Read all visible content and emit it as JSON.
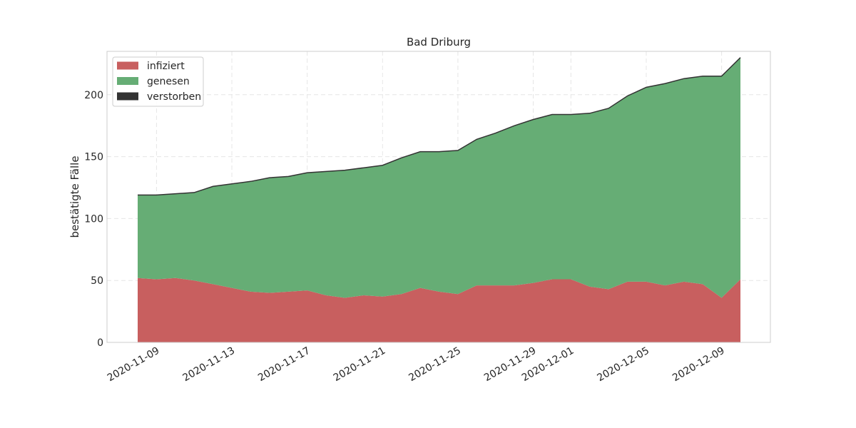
{
  "chart_data": {
    "type": "area",
    "stacked": true,
    "title": "Bad Driburg",
    "xlabel": "",
    "ylabel": "bestätigte Fälle",
    "ylim": [
      0,
      235
    ],
    "yticks": [
      0,
      50,
      100,
      150,
      200
    ],
    "grid": true,
    "legend_position": "top-left",
    "x": [
      "2020-11-08",
      "2020-11-09",
      "2020-11-10",
      "2020-11-11",
      "2020-11-12",
      "2020-11-13",
      "2020-11-14",
      "2020-11-15",
      "2020-11-16",
      "2020-11-17",
      "2020-11-18",
      "2020-11-19",
      "2020-11-20",
      "2020-11-21",
      "2020-11-22",
      "2020-11-23",
      "2020-11-24",
      "2020-11-25",
      "2020-11-26",
      "2020-11-27",
      "2020-11-28",
      "2020-11-29",
      "2020-11-30",
      "2020-12-01",
      "2020-12-02",
      "2020-12-03",
      "2020-12-04",
      "2020-12-05",
      "2020-12-06",
      "2020-12-07",
      "2020-12-08",
      "2020-12-09",
      "2020-12-10"
    ],
    "xticks": [
      "2020-11-09",
      "2020-11-13",
      "2020-11-17",
      "2020-11-21",
      "2020-11-25",
      "2020-11-29",
      "2020-12-01",
      "2020-12-05",
      "2020-12-09"
    ],
    "series": [
      {
        "name": "infiziert",
        "color": "#c85f5f",
        "values": [
          52,
          51,
          52,
          50,
          47,
          44,
          41,
          40,
          41,
          42,
          38,
          36,
          38,
          37,
          39,
          44,
          41,
          39,
          46,
          46,
          46,
          48,
          51,
          51,
          45,
          43,
          49,
          49,
          46,
          49,
          47,
          36,
          51
        ]
      },
      {
        "name": "genesen",
        "color": "#66ad75",
        "values": [
          67,
          68,
          68,
          71,
          79,
          84,
          89,
          93,
          93,
          95,
          100,
          103,
          103,
          106,
          110,
          110,
          113,
          116,
          118,
          123,
          129,
          132,
          133,
          133,
          140,
          146,
          150,
          157,
          163,
          164,
          168,
          179,
          179
        ]
      },
      {
        "name": "verstorben",
        "color": "#333333",
        "values": [
          0,
          0,
          0,
          0,
          0,
          0,
          0,
          0,
          0,
          0,
          0,
          0,
          0,
          0,
          0,
          0,
          0,
          0,
          0,
          0,
          0,
          0,
          0,
          0,
          0,
          0,
          0,
          0,
          0,
          0,
          0,
          0,
          0
        ]
      }
    ]
  }
}
